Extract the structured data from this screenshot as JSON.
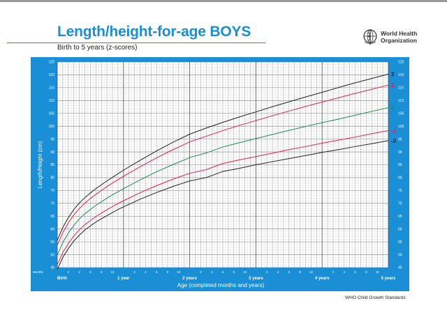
{
  "header": {
    "title": "Length/height-for-age BOYS",
    "subtitle": "Birth to 5 years (z-scores)",
    "org_line1": "World Health",
    "org_line2": "Organization"
  },
  "footer": {
    "text": "WHO Child Growth Standards"
  },
  "colors": {
    "panel": "#1a8fd6",
    "grid_bg": "#ffffff",
    "z3": "#222222",
    "z2": "#e4214b",
    "z0": "#1f8a4c"
  },
  "chart_data": {
    "type": "line",
    "title": "Length/height-for-age BOYS",
    "subtitle": "Birth to 5 years (z-scores)",
    "xlabel": "Age (completed months and years)",
    "ylabel": "Length/Height (cm)",
    "xlim": [
      0,
      60
    ],
    "ylim": [
      45,
      125
    ],
    "y_ticks": [
      45,
      50,
      55,
      60,
      65,
      70,
      75,
      80,
      85,
      90,
      95,
      100,
      105,
      110,
      115,
      120,
      125
    ],
    "months_label": "Months",
    "month_ticks": [
      2,
      4,
      6,
      8,
      10,
      2,
      4,
      6,
      8,
      10,
      2,
      4,
      6,
      8,
      10,
      2,
      4,
      6,
      8,
      10,
      2,
      4,
      6,
      8,
      10
    ],
    "year_labels": [
      "Birth",
      "1 year",
      "2 years",
      "3 years",
      "4 years",
      "5 years"
    ],
    "grid": true,
    "x": [
      0,
      1,
      2,
      3,
      4,
      5,
      6,
      7,
      8,
      9,
      10,
      11,
      12,
      15,
      18,
      21,
      24,
      27,
      30,
      33,
      36,
      39,
      42,
      45,
      48,
      51,
      54,
      57,
      60
    ],
    "series": [
      {
        "name": "3",
        "values": [
          55.6,
          60.6,
          64.4,
          67.6,
          70.1,
          72.2,
          74.0,
          75.7,
          77.2,
          78.7,
          80.1,
          81.5,
          82.9,
          86.7,
          90.4,
          93.8,
          96.9,
          99.3,
          101.5,
          103.6,
          105.6,
          107.6,
          109.5,
          111.4,
          113.2,
          115.1,
          116.9,
          118.6,
          120.3
        ]
      },
      {
        "name": "2",
        "values": [
          53.7,
          58.6,
          62.4,
          65.5,
          68.0,
          70.1,
          71.9,
          73.5,
          75.0,
          76.5,
          77.9,
          79.2,
          80.5,
          84.2,
          87.7,
          90.9,
          93.9,
          96.1,
          98.3,
          100.3,
          102.2,
          104.1,
          105.9,
          107.7,
          109.4,
          111.1,
          112.8,
          114.4,
          116.0
        ]
      },
      {
        "name": "0",
        "values": [
          49.9,
          54.7,
          58.4,
          61.4,
          63.9,
          65.9,
          67.6,
          69.2,
          70.6,
          72.0,
          73.3,
          74.5,
          75.7,
          79.1,
          82.3,
          85.1,
          87.8,
          89.6,
          91.9,
          93.6,
          95.2,
          96.8,
          98.4,
          99.9,
          101.4,
          102.8,
          104.3,
          105.8,
          107.2
        ]
      },
      {
        "name": "-2",
        "values": [
          46.1,
          50.8,
          54.4,
          57.3,
          59.7,
          61.7,
          63.3,
          64.8,
          66.2,
          67.5,
          68.7,
          69.9,
          71.0,
          74.1,
          76.9,
          79.4,
          81.7,
          83.1,
          85.5,
          86.9,
          88.2,
          89.5,
          90.9,
          92.1,
          93.4,
          94.6,
          95.8,
          97.1,
          98.3
        ]
      },
      {
        "name": "-3",
        "values": [
          44.2,
          48.9,
          52.4,
          55.3,
          57.6,
          59.6,
          61.2,
          62.7,
          64.0,
          65.2,
          66.4,
          67.6,
          68.6,
          71.6,
          74.2,
          76.6,
          78.7,
          80.0,
          82.4,
          83.6,
          85.0,
          86.2,
          87.4,
          88.6,
          89.8,
          90.9,
          92.1,
          93.2,
          94.4
        ]
      }
    ]
  }
}
